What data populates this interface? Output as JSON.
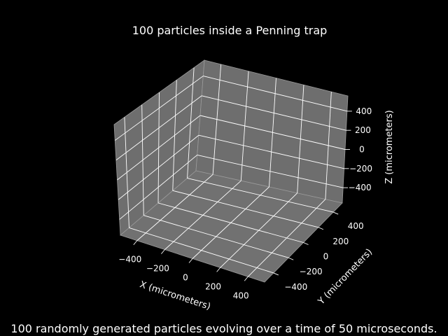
{
  "chart_data": {
    "type": "scatter",
    "projection": "3d",
    "title": "100 particles inside a Penning trap",
    "caption": "100 randomly generated particles evolving over a time of 50 microseconds.",
    "xlabel": "X (micrometers)",
    "ylabel": "Y (micrometers)",
    "zlabel": "Z (micrometers)",
    "xticks": [
      -400,
      -200,
      0,
      200,
      400
    ],
    "yticks": [
      -400,
      -200,
      0,
      200,
      400
    ],
    "zticks": [
      -400,
      -200,
      0,
      200,
      400
    ],
    "tick_labels": {
      "x": [
        "−400",
        "−200",
        "0",
        "200",
        "400"
      ],
      "y": [
        "−400",
        "−200",
        "0",
        "200",
        "400"
      ],
      "z": [
        "−400",
        "−200",
        "0",
        "200",
        "400"
      ]
    },
    "grid": true,
    "series": [],
    "colors": {
      "background": "#000000",
      "pane": "#707070",
      "grid": "#ffffff",
      "text": "#ffffff"
    }
  }
}
